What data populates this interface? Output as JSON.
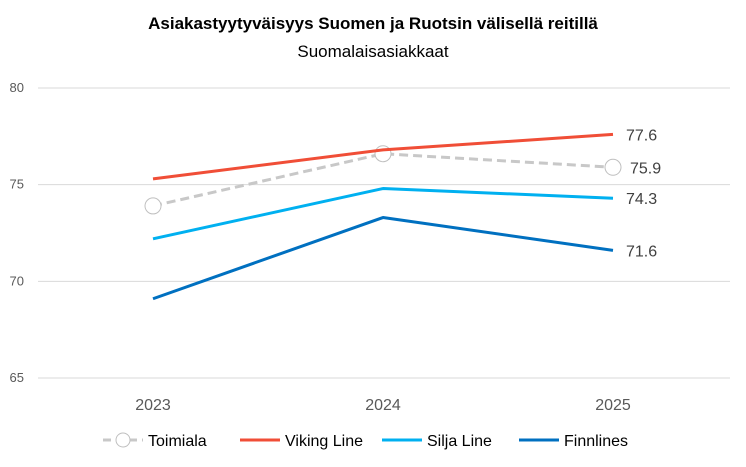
{
  "chart_data": {
    "type": "line",
    "title": "Asiakastyytyväisyys Suomen ja Ruotsin välisellä reitillä",
    "subtitle": "Suomalaisasiakkaat",
    "categories": [
      "2023",
      "2024",
      "2025"
    ],
    "ylim": [
      65,
      80
    ],
    "yticks": [
      "65",
      "70",
      "75",
      "80"
    ],
    "grid": true,
    "legend_position": "bottom",
    "series": [
      {
        "name": "Toimiala",
        "values": [
          73.9,
          76.6,
          75.9
        ],
        "color": "#c8c8c8",
        "dashed": true,
        "markers": true,
        "end_label": "75.9"
      },
      {
        "name": "Viking Line",
        "values": [
          75.3,
          76.8,
          77.6
        ],
        "color": "#f04e37",
        "end_label": "77.6"
      },
      {
        "name": "Silja Line",
        "values": [
          72.2,
          74.8,
          74.3
        ],
        "color": "#00b0f0",
        "end_label": "74.3"
      },
      {
        "name": "Finnlines",
        "values": [
          69.1,
          73.3,
          71.6
        ],
        "color": "#0070c0",
        "end_label": "71.6"
      }
    ]
  }
}
